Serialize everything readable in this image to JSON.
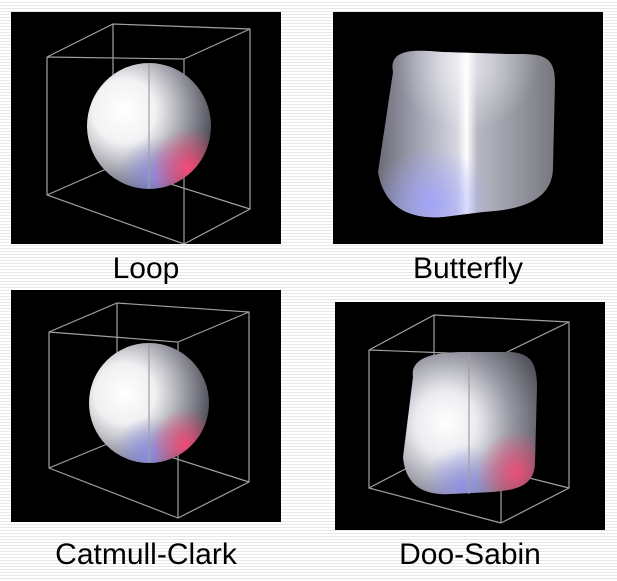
{
  "panels": [
    {
      "id": "loop",
      "label": "Loop",
      "shape": "sphere"
    },
    {
      "id": "butterfly",
      "label": "Butterfly",
      "shape": "rounded-cube"
    },
    {
      "id": "catmull-clark",
      "label": "Catmull-Clark",
      "shape": "sphere"
    },
    {
      "id": "doo-sabin",
      "label": "Doo-Sabin",
      "shape": "rounded-cube"
    }
  ],
  "colors": {
    "page_background": "#ffffff",
    "panel_background": "#000000",
    "cage_lines": "#a0a0a0",
    "highlight_pink": "#ff4a7a",
    "highlight_blue": "#8a8ef0"
  }
}
